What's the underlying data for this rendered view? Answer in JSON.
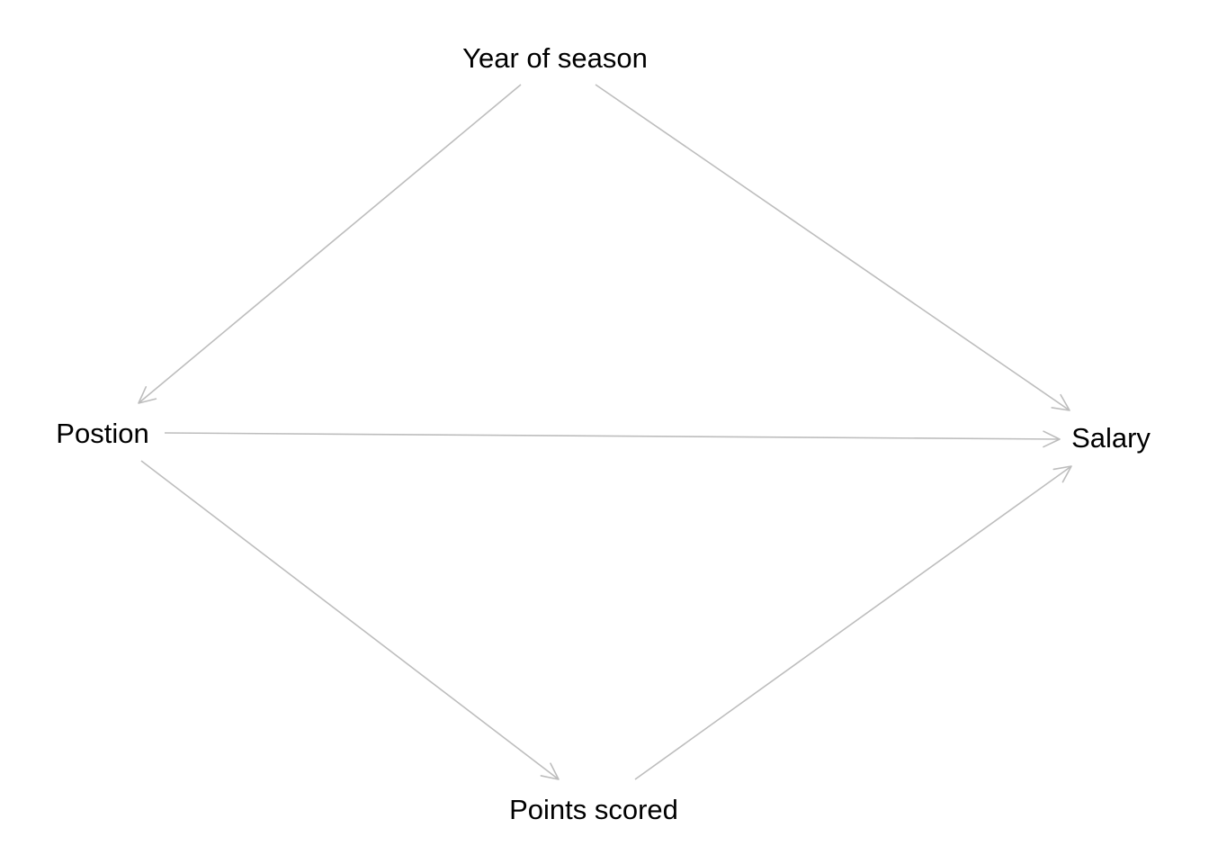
{
  "diagram": {
    "type": "directed-acyclic-graph",
    "edge_color": "#bdbdbd",
    "nodes": {
      "year": {
        "label": "Year of season"
      },
      "position": {
        "label": "Postion"
      },
      "salary": {
        "label": "Salary"
      },
      "points": {
        "label": "Points scored"
      }
    },
    "edges": [
      {
        "from": "year",
        "to": "position"
      },
      {
        "from": "year",
        "to": "salary"
      },
      {
        "from": "position",
        "to": "salary"
      },
      {
        "from": "position",
        "to": "points"
      },
      {
        "from": "points",
        "to": "salary"
      }
    ]
  }
}
